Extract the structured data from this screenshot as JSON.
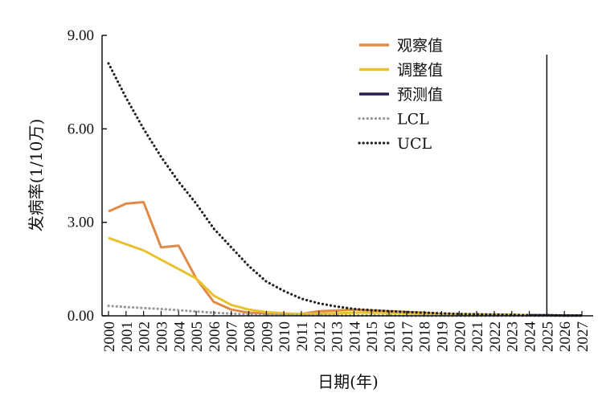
{
  "chart_data": {
    "type": "line",
    "xlabel": "日期(年)",
    "ylabel": "发病率(1/10万)",
    "ylim": [
      0,
      9
    ],
    "yticks": [
      "0.00",
      "3.00",
      "6.00",
      "9.00"
    ],
    "x": [
      2000,
      2001,
      2002,
      2003,
      2004,
      2005,
      2006,
      2007,
      2008,
      2009,
      2010,
      2011,
      2012,
      2013,
      2014,
      2015,
      2016,
      2017,
      2018,
      2019,
      2020,
      2021,
      2022,
      2023,
      2024,
      2025,
      2026,
      2027
    ],
    "xtick_labels": [
      "2000",
      "2001",
      "2002",
      "2003",
      "2004",
      "2005",
      "2006",
      "2007",
      "2008",
      "2009",
      "2010",
      "2011",
      "2012",
      "2013",
      "2014",
      "2015",
      "2016",
      "2017",
      "2018",
      "2019",
      "2020",
      "2021",
      "2022",
      "2023",
      "2024",
      "2025",
      "2026",
      "2027"
    ],
    "grid": false,
    "legend_position": "top-right",
    "vertical_line_x": 2025,
    "series": [
      {
        "name": "观察值",
        "color": "#e08a45",
        "style": "solid",
        "x": [
          2000,
          2001,
          2002,
          2003,
          2004,
          2005,
          2006,
          2007,
          2008,
          2009,
          2010,
          2011,
          2012,
          2013,
          2014,
          2015,
          2016,
          2017,
          2018,
          2019,
          2020,
          2021,
          2022,
          2023,
          2024
        ],
        "values": [
          3.35,
          3.6,
          3.65,
          2.2,
          2.25,
          1.2,
          0.45,
          0.2,
          0.1,
          0.08,
          0.06,
          0.06,
          0.15,
          0.17,
          0.2,
          0.17,
          0.15,
          0.12,
          0.1,
          0.06,
          0.05,
          0.05,
          0.03,
          0.03,
          0.02
        ]
      },
      {
        "name": "调整值",
        "color": "#e8c22d",
        "style": "solid",
        "x": [
          2000,
          2001,
          2002,
          2003,
          2004,
          2005,
          2006,
          2007,
          2008,
          2009,
          2010,
          2011,
          2012,
          2013,
          2014,
          2015,
          2016,
          2017,
          2018,
          2019,
          2020,
          2021,
          2022,
          2023,
          2024
        ],
        "values": [
          2.5,
          2.3,
          2.1,
          1.8,
          1.5,
          1.2,
          0.65,
          0.35,
          0.2,
          0.12,
          0.08,
          0.06,
          0.07,
          0.08,
          0.1,
          0.1,
          0.09,
          0.08,
          0.06,
          0.05,
          0.04,
          0.04,
          0.03,
          0.03,
          0.02
        ]
      },
      {
        "name": "预测值",
        "color": "#2b1f4a",
        "style": "solid",
        "x": [
          2024,
          2025,
          2026,
          2027
        ],
        "values": [
          0.02,
          0.02,
          0.01,
          0.01
        ]
      },
      {
        "name": "LCL",
        "color": "#9a9a9a",
        "style": "dotted",
        "x": [
          2000,
          2001,
          2002,
          2003,
          2004,
          2005,
          2006,
          2007,
          2008,
          2009,
          2010,
          2011,
          2012,
          2013,
          2014,
          2015,
          2016,
          2017,
          2018,
          2019,
          2020,
          2021,
          2022,
          2023,
          2024,
          2025,
          2026,
          2027
        ],
        "values": [
          0.32,
          0.28,
          0.25,
          0.22,
          0.18,
          0.14,
          0.1,
          0.07,
          0.05,
          0.04,
          0.03,
          0.02,
          0.02,
          0.01,
          0.01,
          0.01,
          0.01,
          0.0,
          0.0,
          0.0,
          0.0,
          0.0,
          0.0,
          0.0,
          0.0,
          0.0,
          0.0,
          0.0
        ]
      },
      {
        "name": "UCL",
        "color": "#222222",
        "style": "dotted",
        "x": [
          2000,
          2001,
          2002,
          2003,
          2004,
          2005,
          2006,
          2007,
          2008,
          2009,
          2010,
          2011,
          2012,
          2013,
          2014,
          2015,
          2016,
          2017,
          2018,
          2019,
          2020,
          2021,
          2022,
          2023,
          2024,
          2025,
          2026,
          2027
        ],
        "values": [
          8.1,
          7.0,
          6.0,
          5.1,
          4.3,
          3.6,
          2.8,
          2.2,
          1.6,
          1.1,
          0.8,
          0.55,
          0.4,
          0.3,
          0.22,
          0.18,
          0.15,
          0.12,
          0.1,
          0.08,
          0.06,
          0.05,
          0.04,
          0.03,
          0.02,
          0.02,
          0.01,
          0.01
        ]
      }
    ]
  }
}
